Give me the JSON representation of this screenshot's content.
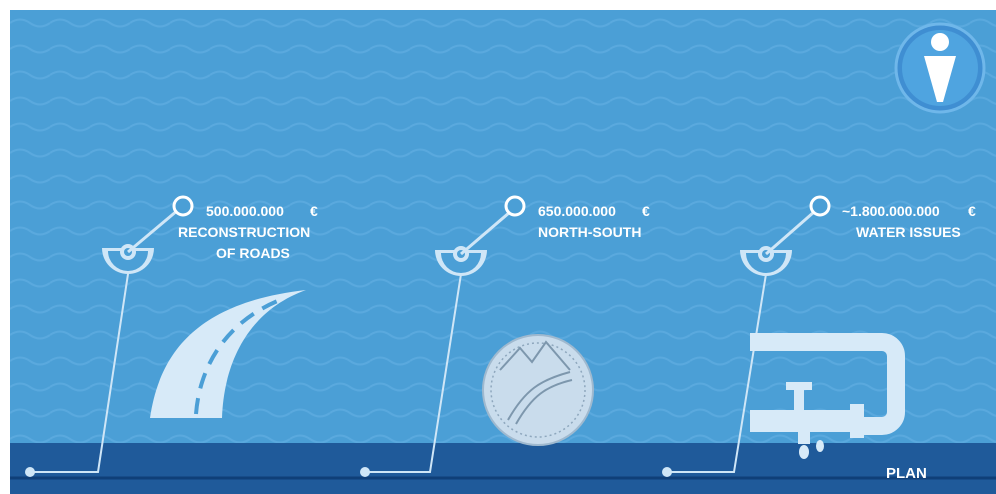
{
  "colors": {
    "background": "#4b9fd6",
    "band": "#1f5a9a",
    "line": "#cfe6f7",
    "text": "#ffffff"
  },
  "items": [
    {
      "amount": "500.000.000",
      "currency": "€",
      "line1": "RECONSTRUCTION",
      "line2": "OF ROADS",
      "icon": "road-icon"
    },
    {
      "amount": "650.000.000",
      "currency": "€",
      "line1": "NORTH-SOUTH",
      "line2": "",
      "icon": "north-south-coin-icon"
    },
    {
      "amount": "~1.800.000.000",
      "currency": "€",
      "line1": "WATER ISSUES",
      "line2": "",
      "icon": "water-pipe-icon"
    }
  ],
  "plan_label": "PLAN",
  "logo_icon": "info-person-logo"
}
